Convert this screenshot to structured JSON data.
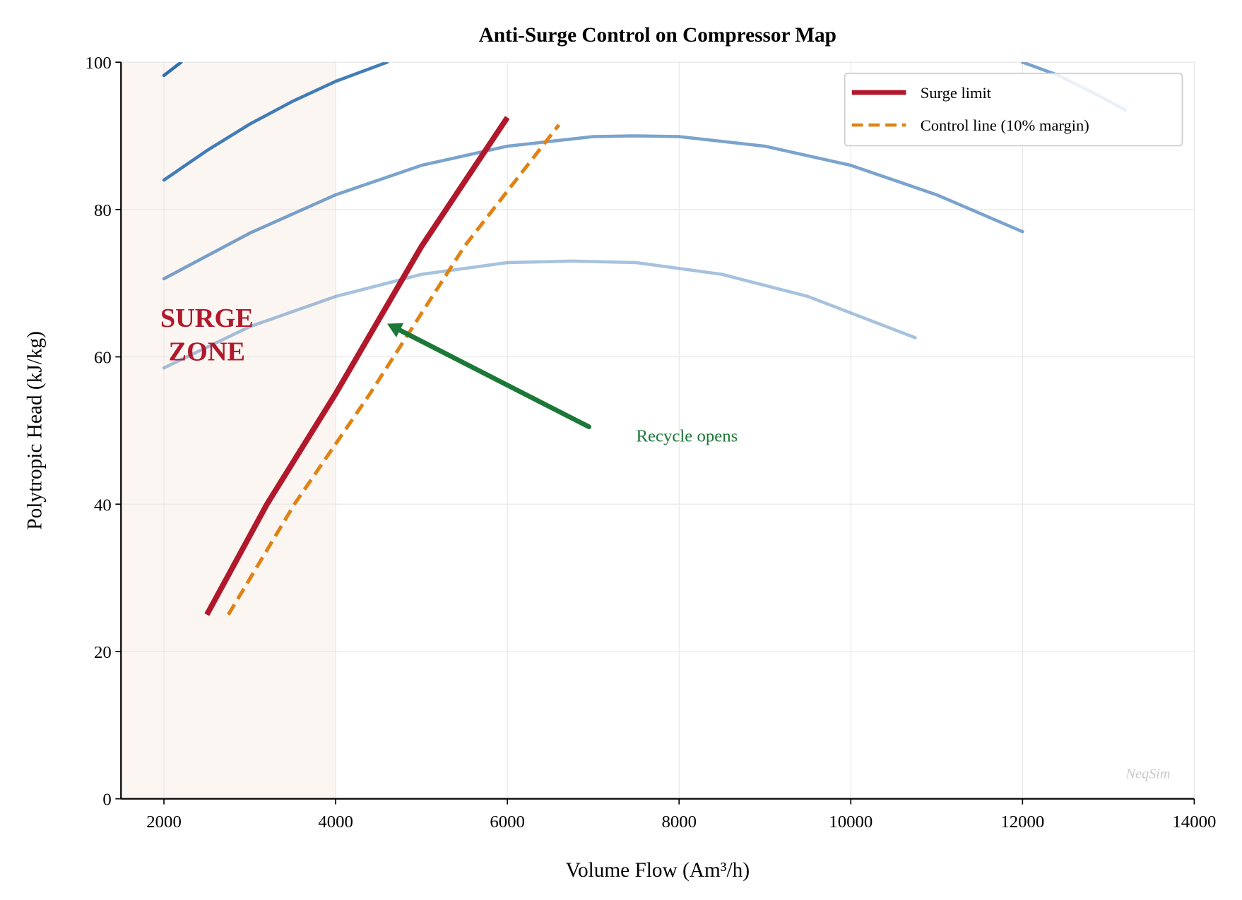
{
  "chart_data": {
    "type": "line",
    "title": "Anti-Surge Control on Compressor Map",
    "xlabel": "Volume Flow (Am³/h)",
    "ylabel": "Polytropic Head (kJ/kg)",
    "xlim": [
      1500,
      14000
    ],
    "ylim": [
      0,
      100
    ],
    "xticks": [
      2000,
      4000,
      6000,
      8000,
      10000,
      12000,
      14000
    ],
    "yticks": [
      0,
      20,
      40,
      60,
      80,
      100
    ],
    "grid": true,
    "legend_position": "top-right",
    "surge_zone": {
      "label_line1": "SURGE",
      "label_line2": "ZONE",
      "x_range": [
        1500,
        4000
      ],
      "label_at": [
        2500,
        63
      ],
      "color": "#b2182b"
    },
    "speed_lines": [
      {
        "color": "#2166ac",
        "opacity": 0.95,
        "points": [
          [
            2000,
            98.2
          ],
          [
            2200,
            100
          ]
        ]
      },
      {
        "color": "#2166ac",
        "opacity": 0.85,
        "points": [
          [
            2000,
            84
          ],
          [
            2500,
            88
          ],
          [
            3000,
            91.6
          ],
          [
            3500,
            94.7
          ],
          [
            4000,
            97.4
          ],
          [
            4600,
            100
          ]
        ]
      },
      {
        "color": "#2166ac",
        "opacity": 0.6,
        "points": [
          [
            12000,
            100
          ],
          [
            12400,
            98.3
          ],
          [
            12800,
            96
          ],
          [
            13200,
            93.5
          ]
        ]
      },
      {
        "color": "#2166ac",
        "opacity": 0.6,
        "points": [
          [
            2000,
            70.6
          ],
          [
            3000,
            76.8
          ],
          [
            4000,
            82
          ],
          [
            5000,
            86
          ],
          [
            6000,
            88.6
          ],
          [
            7000,
            89.9
          ],
          [
            7500,
            90
          ],
          [
            8000,
            89.9
          ],
          [
            9000,
            88.6
          ],
          [
            10000,
            86
          ],
          [
            11000,
            82
          ],
          [
            12000,
            77
          ]
        ]
      },
      {
        "color": "#2166ac",
        "opacity": 0.4,
        "points": [
          [
            2000,
            58.5
          ],
          [
            3000,
            64.1
          ],
          [
            4000,
            68.2
          ],
          [
            5000,
            71.2
          ],
          [
            6000,
            72.8
          ],
          [
            6750,
            73
          ],
          [
            7500,
            72.8
          ],
          [
            8500,
            71.2
          ],
          [
            9500,
            68.2
          ],
          [
            10750,
            62.6
          ]
        ]
      }
    ],
    "series": [
      {
        "name": "Surge limit",
        "color": "#b2182b",
        "style": "solid",
        "x": [
          2500,
          3200,
          4000,
          5000,
          6000
        ],
        "y": [
          25,
          40,
          55,
          75,
          92.5
        ]
      },
      {
        "name": "Control line (10% margin)",
        "color": "#e08214",
        "style": "dashed",
        "x": [
          2750,
          3520,
          4400,
          5500,
          6600
        ],
        "y": [
          25,
          40,
          55,
          75,
          91.5
        ]
      }
    ],
    "annotation": {
      "text": "Recycle opens",
      "color": "#1b7837",
      "arrow_from": [
        6950,
        50.5
      ],
      "arrow_to": [
        4600,
        64.5
      ],
      "text_at": [
        7500,
        48.5
      ]
    },
    "watermark": "NeqSim"
  }
}
